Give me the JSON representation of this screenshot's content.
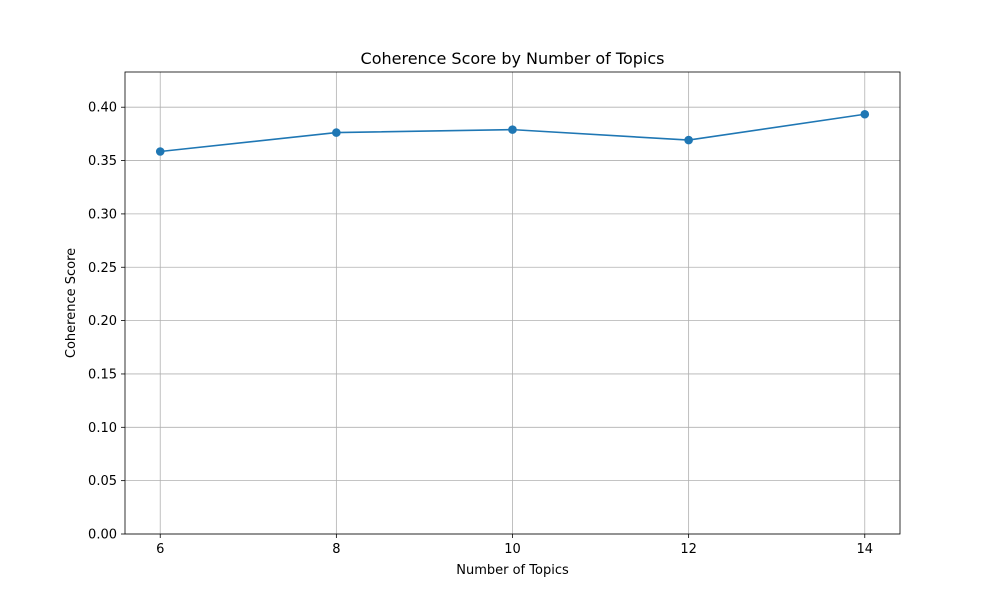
{
  "chart_data": {
    "type": "line",
    "title": "Coherence Score by Number of Topics",
    "xlabel": "Number of Topics",
    "ylabel": "Coherence Score",
    "x": [
      6,
      8,
      10,
      12,
      14
    ],
    "series": [
      {
        "values": [
          0.3585,
          0.3762,
          0.379,
          0.3692,
          0.3934
        ],
        "color": "#1f77b4",
        "marker": "circle"
      }
    ],
    "xlim": [
      5.6,
      14.4
    ],
    "ylim": [
      0,
      0.433
    ],
    "xticks": [
      6,
      8,
      10,
      12,
      14
    ],
    "xtick_labels": [
      "6",
      "8",
      "10",
      "12",
      "14"
    ],
    "yticks": [
      0,
      0.05,
      0.1,
      0.15,
      0.2,
      0.25,
      0.3,
      0.35,
      0.4
    ],
    "ytick_labels": [
      "0.00",
      "0.05",
      "0.10",
      "0.15",
      "0.20",
      "0.25",
      "0.30",
      "0.35",
      "0.40"
    ],
    "grid": true,
    "grid_color": "#b0b0b0"
  }
}
